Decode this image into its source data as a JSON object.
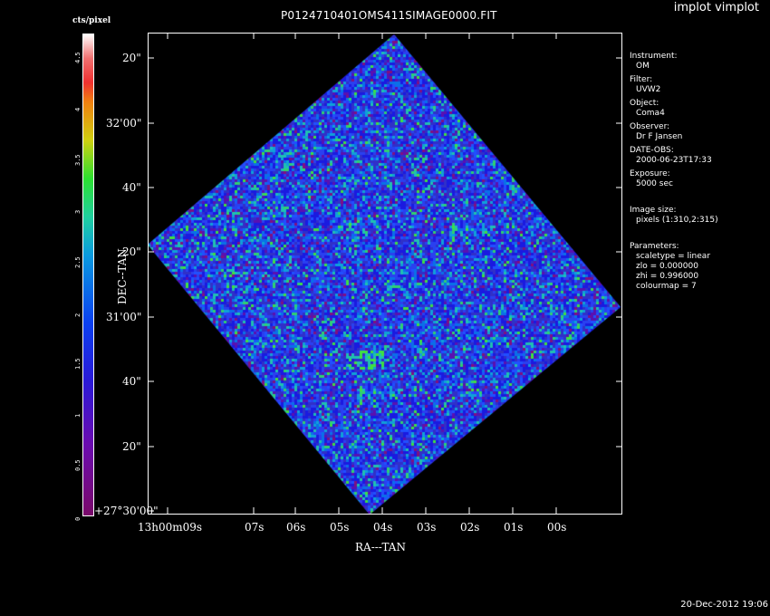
{
  "app_title": "implot vimplot",
  "plot_title": "P0124710401OMS411SIMAGE0000.FIT",
  "colorbar": {
    "label": "cts/pixel",
    "ticks": [
      "0",
      "0.5",
      "1",
      "1.5",
      "2",
      "2.5",
      "3",
      "3.5",
      "4",
      "4.5"
    ]
  },
  "axes": {
    "x_label": "RA---TAN",
    "y_label": "DEC--TAN",
    "y_ticks": [
      "20\"",
      "32'00\"",
      "40\"",
      "20\"",
      "31'00\"",
      "40\"",
      "20\"",
      "+27°30'00\""
    ],
    "x_ticks_first": "13h00m09s",
    "x_ticks": [
      "07s",
      "06s",
      "05s",
      "04s",
      "03s",
      "02s",
      "01s",
      "00s"
    ]
  },
  "info": [
    {
      "key": "Instrument:",
      "value": "OM"
    },
    {
      "key": "Filter:",
      "value": "UVW2"
    },
    {
      "key": "Object:",
      "value": "Coma4"
    },
    {
      "key": "Observer:",
      "value": "Dr F Jansen"
    },
    {
      "key": "DATE-OBS:",
      "value": "2000-06-23T17:33"
    },
    {
      "key": "Exposure:",
      "value": "5000 sec"
    },
    {
      "key": "Image size:",
      "value": "pixels (1:310,2:315)"
    },
    {
      "key": "Parameters:",
      "values": [
        "scaletype = linear",
        "zlo = 0.000000",
        "zhi = 0.996000",
        "colourmap =   7"
      ]
    }
  ],
  "timestamp": "20-Dec-2012 19:06",
  "colors": {
    "background": "#000000",
    "foreground": "#ffffff",
    "image_base": "#2a2ad8"
  }
}
